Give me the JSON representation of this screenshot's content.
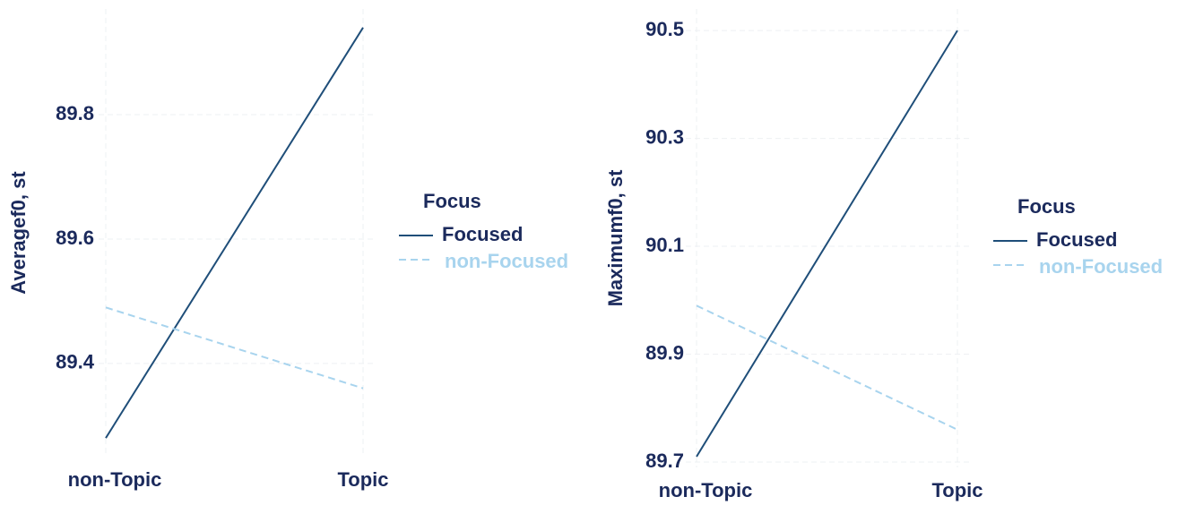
{
  "chart_data": [
    {
      "type": "line",
      "ylabel": "Averagef0, st",
      "categories": [
        "non-Topic",
        "Topic"
      ],
      "legend_title": "Focus",
      "series": [
        {
          "name": "Focused",
          "color": "#1f4e79",
          "linestyle": "solid",
          "values": [
            89.28,
            89.94
          ]
        },
        {
          "name": "non-Focused",
          "color": "#a8d4ee",
          "linestyle": "dashed",
          "values": [
            89.49,
            89.36
          ]
        }
      ],
      "ylim": [
        89.25,
        89.97
      ],
      "yticks": [
        89.4,
        89.6,
        89.8
      ],
      "grid": true
    },
    {
      "type": "line",
      "ylabel": "Maximumf0, st",
      "categories": [
        "non-Topic",
        "Topic"
      ],
      "legend_title": "Focus",
      "series": [
        {
          "name": "Focused",
          "color": "#1f4e79",
          "linestyle": "solid",
          "values": [
            89.71,
            90.5
          ]
        },
        {
          "name": "non-Focused",
          "color": "#a8d4ee",
          "linestyle": "dashed",
          "values": [
            89.99,
            89.76
          ]
        }
      ],
      "ylim": [
        89.69,
        90.54
      ],
      "yticks": [
        89.7,
        89.9,
        90.1,
        90.3,
        90.5
      ],
      "grid": true
    }
  ]
}
